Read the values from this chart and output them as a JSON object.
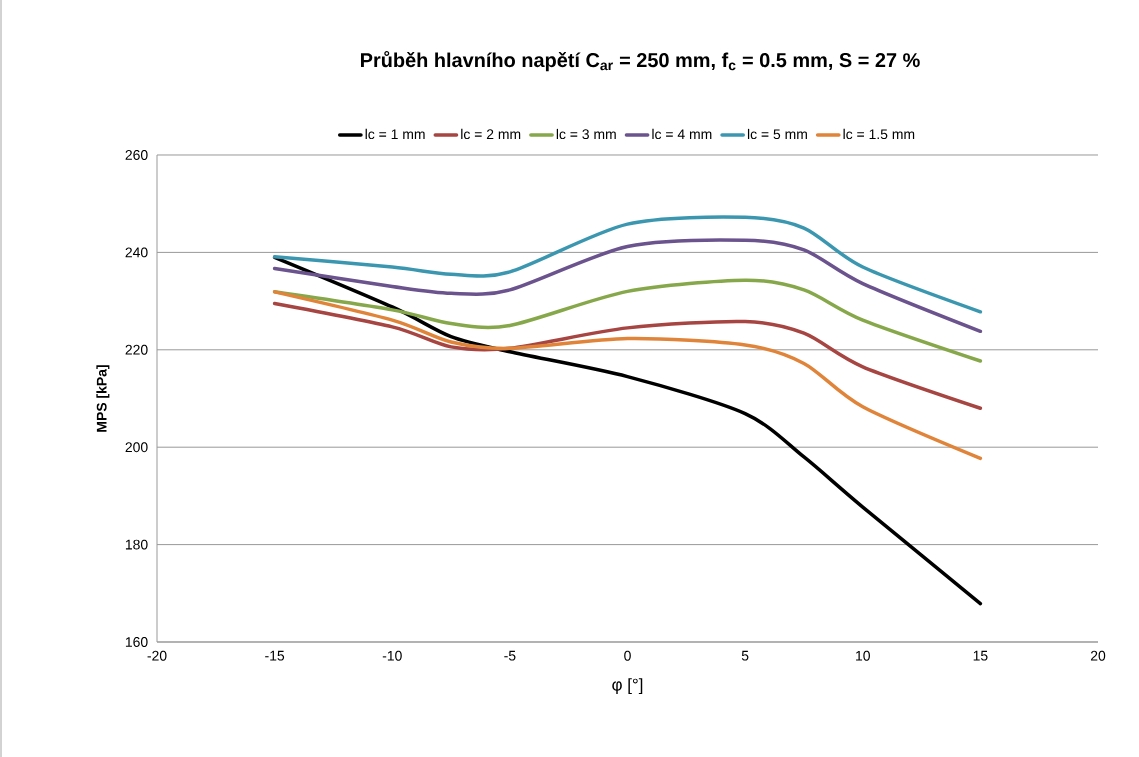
{
  "chart_data": {
    "type": "line",
    "title": "**Průběh hlavního napětí C$_{ar}$ = 250 mm, f$_{c}$ = 0.5 mm, S = 27 %**",
    "xlabel": "φ [°]",
    "ylabel": "MPS [kPa]",
    "x": [
      -15,
      -10,
      -7.5,
      -5,
      0,
      5,
      7.5,
      10,
      15
    ],
    "series": [
      {
        "name": "lc = 1 mm",
        "color": "#000000",
        "values": [
          239,
          228.8,
          222.7,
          219.6,
          214.5,
          206.9,
          198,
          187.7,
          167.9
        ]
      },
      {
        "name": "lc = 2 mm",
        "color": "#a64541",
        "values": [
          229.5,
          224.7,
          220.6,
          220.3,
          224.5,
          225.8,
          223.4,
          216.5,
          208
        ]
      },
      {
        "name": "lc = 3 mm",
        "color": "#86a84a",
        "values": [
          231.9,
          228.2,
          225.4,
          225,
          232,
          234.3,
          232.3,
          226.1,
          217.7
        ]
      },
      {
        "name": "lc = 4 mm",
        "color": "#6b538e",
        "values": [
          236.7,
          233,
          231.6,
          232.3,
          241.2,
          242.5,
          240.5,
          233.6,
          223.8
        ]
      },
      {
        "name": "lc = 5 mm",
        "color": "#3b97b0",
        "values": [
          239.1,
          237,
          235.5,
          236,
          245.8,
          247.2,
          245,
          237,
          227.8
        ]
      },
      {
        "name": "lc = 1.5 mm",
        "color": "#e0843a",
        "values": [
          231.9,
          226.1,
          221.6,
          220.3,
          222.3,
          221,
          217.2,
          208.3,
          197.7
        ]
      }
    ],
    "xlim": [
      -20,
      20
    ],
    "xticks": [
      -20,
      -15,
      -10,
      -5,
      0,
      5,
      10,
      15,
      20
    ],
    "ylim": [
      160,
      260
    ],
    "yticks": [
      160,
      180,
      200,
      220,
      240,
      260
    ],
    "grid": "y",
    "legend": "top",
    "marker": "none",
    "line_style": "solid"
  }
}
